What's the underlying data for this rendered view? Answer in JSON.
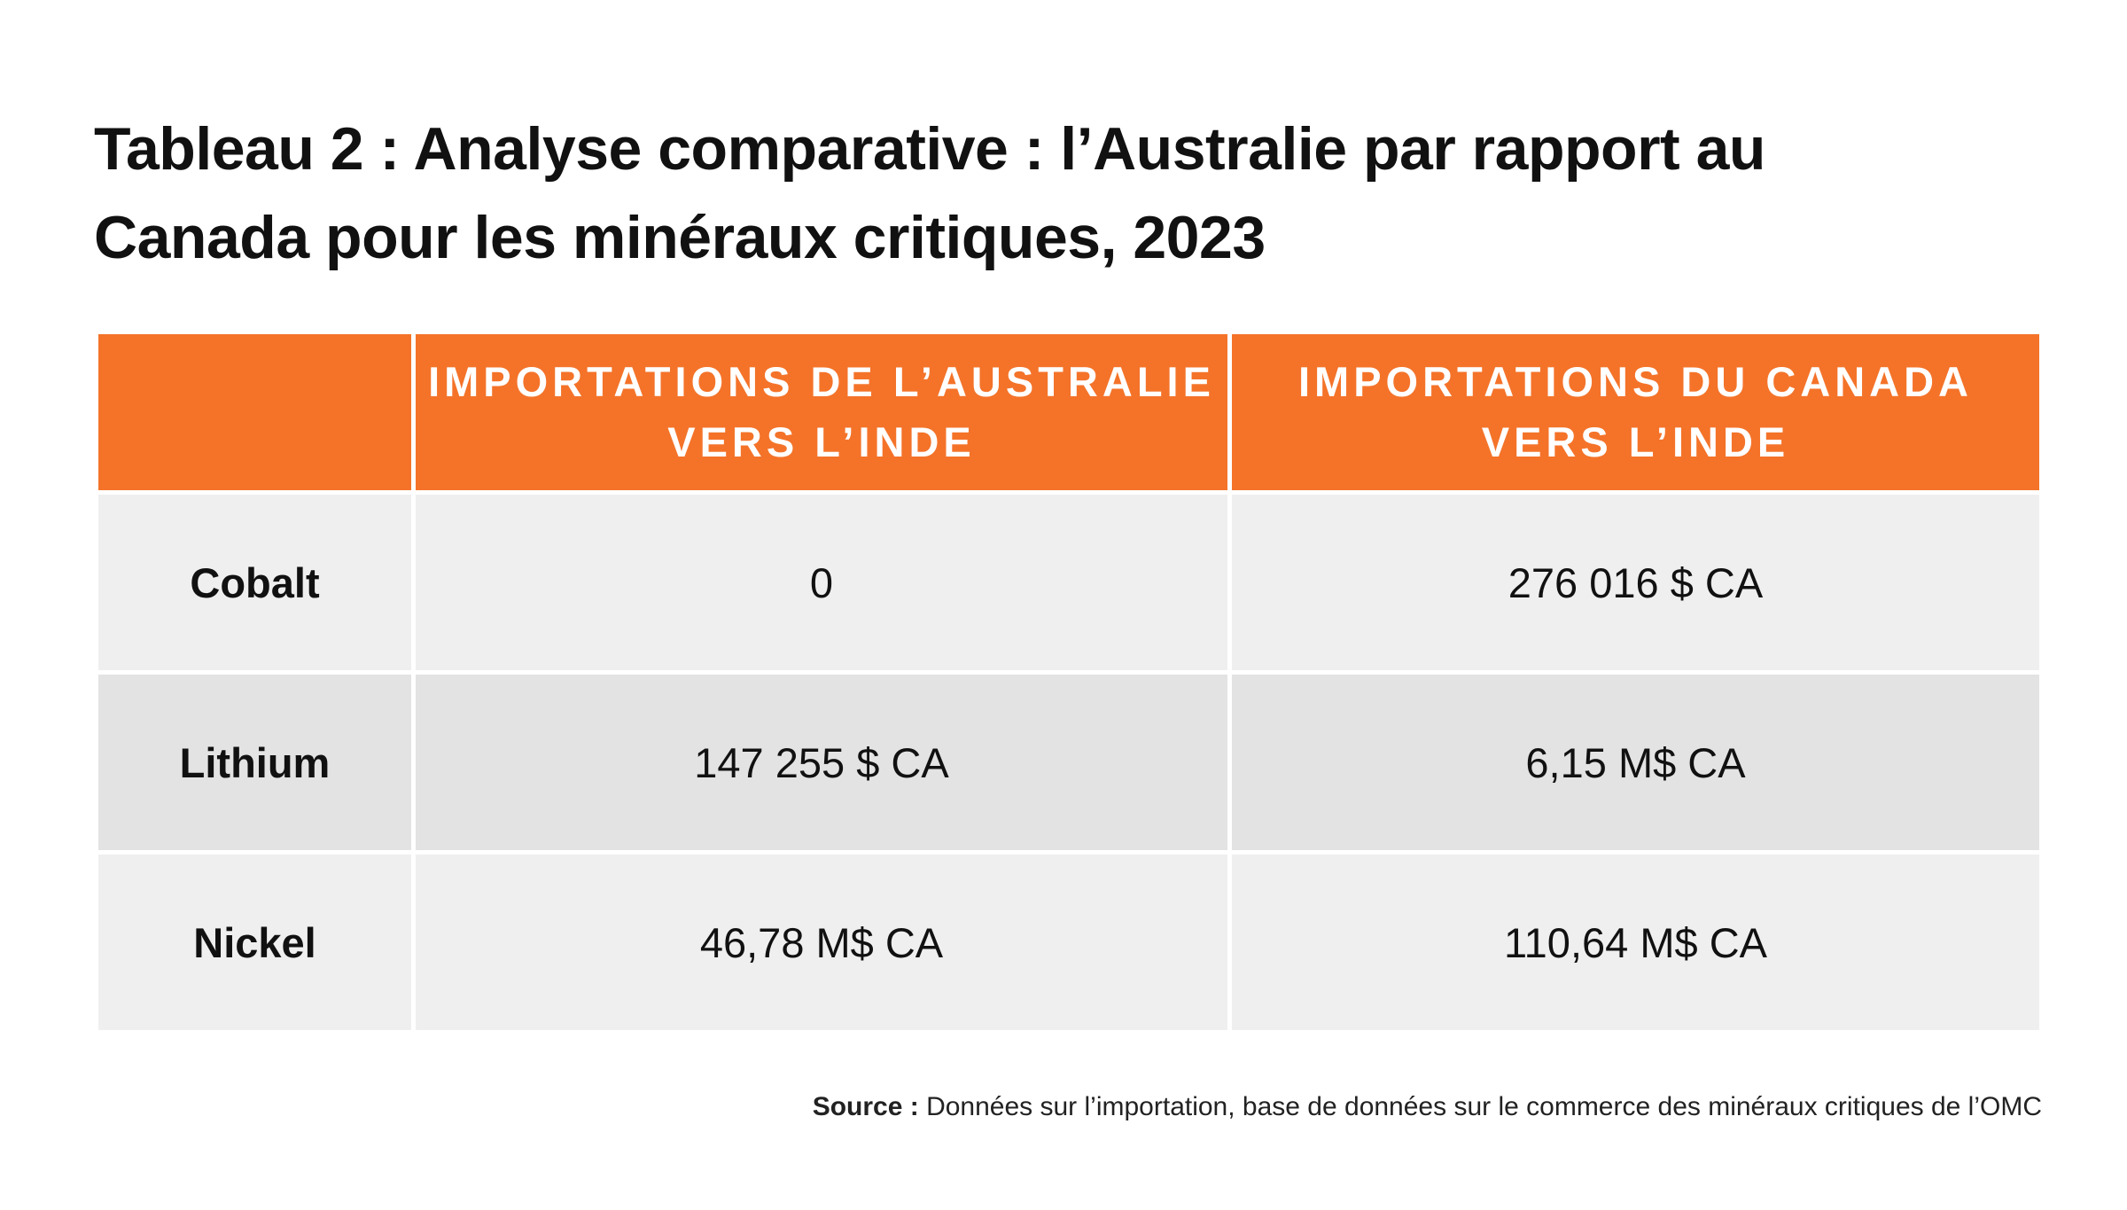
{
  "title": {
    "line1": "Tableau 2 : Analyse comparative : l’Australie par rapport au",
    "line2": "Canada pour les minéraux critiques, 2023"
  },
  "table": {
    "headers": [
      {
        "line1": "",
        "line2": ""
      },
      {
        "line1": "IMPORTATIONS DE L’AUSTRALIE",
        "line2": "VERS L’INDE"
      },
      {
        "line1": "IMPORTATIONS DU CANADA",
        "line2": "VERS L’INDE"
      }
    ],
    "rows": [
      {
        "label": "Cobalt",
        "australia": "0",
        "canada": "276 016 $ CA"
      },
      {
        "label": "Lithium",
        "australia": "147 255 $ CA",
        "canada": "6,15 M$ CA"
      },
      {
        "label": "Nickel",
        "australia": "46,78 M$ CA",
        "canada": "110,64 M$ CA"
      }
    ]
  },
  "source": {
    "label": "Source :",
    "text": "Données sur l’importation, base de données sur le commerce des minéraux critiques de l’OMC"
  },
  "colors": {
    "header_bg": "#f47329",
    "row_light": "#efefef",
    "row_dark": "#e3e3e3"
  }
}
